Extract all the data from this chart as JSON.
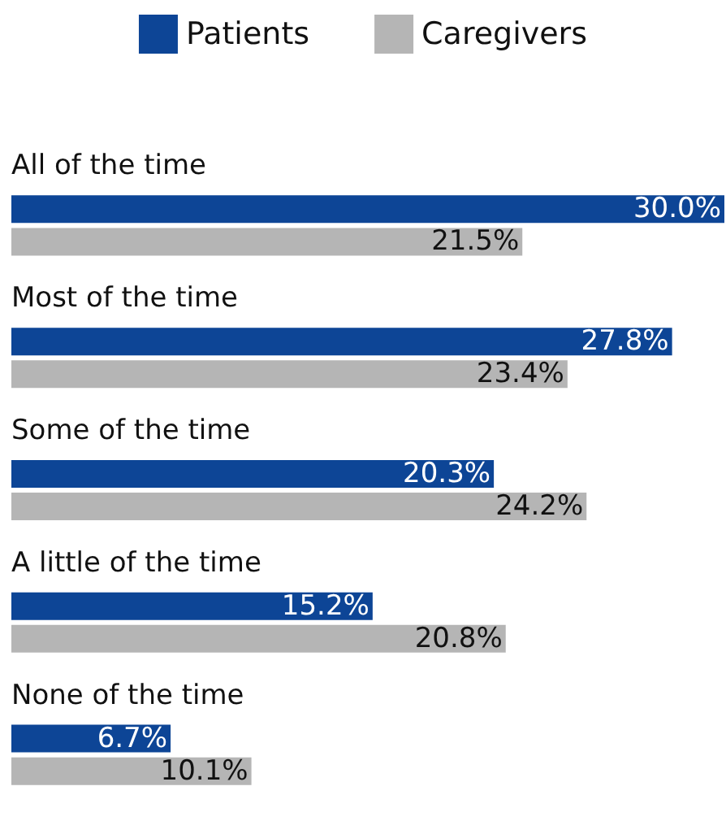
{
  "chart_data": {
    "type": "bar",
    "orientation": "horizontal",
    "categories": [
      "All of the time",
      "Most of the time",
      "Some of the time",
      "A little of the time",
      "None of the time"
    ],
    "series": [
      {
        "name": "Patients",
        "color": "#0d4596",
        "values": [
          30.0,
          27.8,
          20.3,
          15.2,
          6.7
        ],
        "value_labels": [
          "30.0%",
          "27.8%",
          "20.3%",
          "15.2%",
          "6.7%"
        ]
      },
      {
        "name": "Caregivers",
        "color": "#b5b5b5",
        "values": [
          21.5,
          23.4,
          24.2,
          20.8,
          10.1
        ],
        "value_labels": [
          "21.5%",
          "23.4%",
          "24.2%",
          "20.8%",
          "10.1%"
        ]
      }
    ],
    "legend": "top"
  }
}
